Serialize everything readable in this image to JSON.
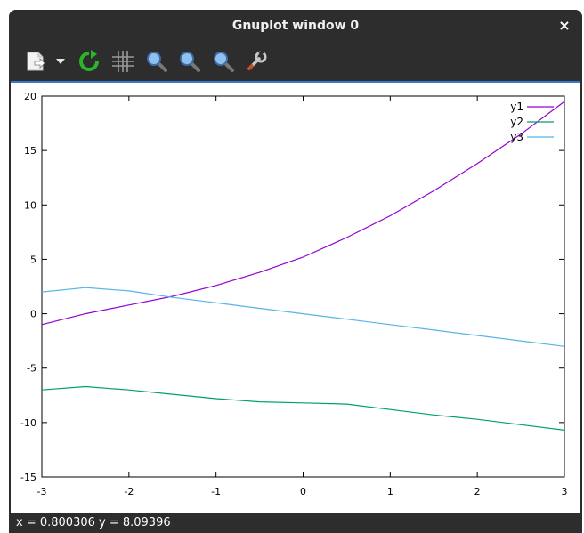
{
  "window": {
    "title": "Gnuplot window 0",
    "close_glyph": "×"
  },
  "toolbar": {
    "items": [
      {
        "name": "export-icon"
      },
      {
        "name": "dropdown-arrow-icon"
      },
      {
        "name": "replot-icon"
      },
      {
        "name": "grid-icon"
      },
      {
        "name": "zoom-prev-icon"
      },
      {
        "name": "zoom-next-icon"
      },
      {
        "name": "autoscale-icon"
      },
      {
        "name": "settings-wrench-icon"
      }
    ]
  },
  "status": {
    "text": "x = 0.800306 y = 8.09396"
  },
  "chart_data": {
    "type": "line",
    "xlim": [
      -3,
      3
    ],
    "ylim": [
      -15,
      20
    ],
    "xticks": [
      -3,
      -2,
      -1,
      0,
      1,
      2,
      3
    ],
    "yticks": [
      -15,
      -10,
      -5,
      0,
      5,
      10,
      15,
      20
    ],
    "xtick_labels": [
      "-3",
      "-2",
      "-1",
      "0",
      "1",
      "2",
      "3"
    ],
    "ytick_labels": [
      "-15",
      "-10",
      "-5",
      "0",
      "5",
      "10",
      "15",
      "20"
    ],
    "grid": false,
    "legend_position": "top-right",
    "series": [
      {
        "name": "y1",
        "color": "#9400d3",
        "x": [
          -3,
          -2.5,
          -2,
          -1.5,
          -1,
          -0.5,
          0,
          0.5,
          1,
          1.5,
          2,
          2.5,
          3
        ],
        "y": [
          -1,
          0,
          0.8,
          1.6,
          2.6,
          3.8,
          5.2,
          7,
          9,
          11.3,
          13.8,
          16.5,
          19.5
        ]
      },
      {
        "name": "y2",
        "color": "#009e73",
        "x": [
          -3,
          -2.5,
          -2,
          -1.5,
          -1,
          -0.5,
          0,
          0.5,
          1,
          1.5,
          2,
          2.5,
          3
        ],
        "y": [
          -7,
          -6.7,
          -7,
          -7.4,
          -7.8,
          -8.1,
          -8.2,
          -8.3,
          -8.8,
          -9.3,
          -9.7,
          -10.2,
          -10.7
        ]
      },
      {
        "name": "y3",
        "color": "#56b4e9",
        "x": [
          -3,
          -2.5,
          -2,
          -1.5,
          -1,
          -0.5,
          0,
          0.5,
          1,
          1.5,
          2,
          2.5,
          3
        ],
        "y": [
          2,
          2.4,
          2.1,
          1.5,
          1,
          0.5,
          0,
          -0.5,
          -1,
          -1.5,
          -2,
          -2.5,
          -3
        ]
      }
    ]
  }
}
